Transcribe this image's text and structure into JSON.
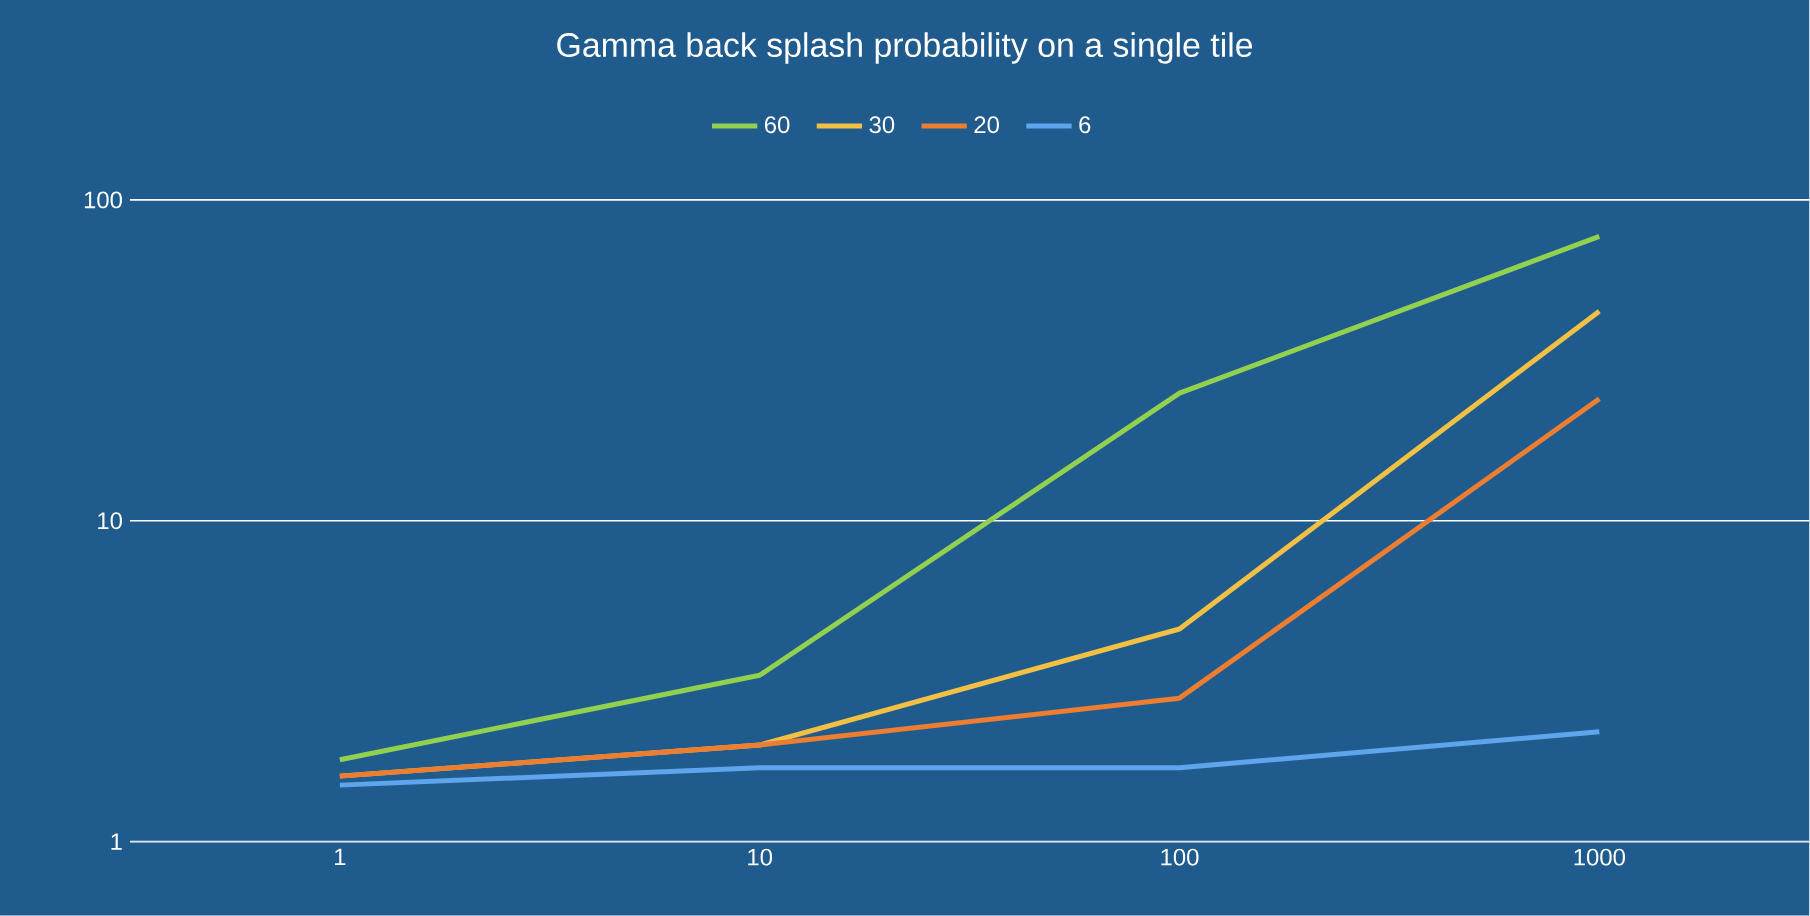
{
  "chart_data": {
    "type": "line",
    "title": "Gamma back splash probability on a single tile",
    "categories": [
      "1",
      "10",
      "100",
      "1000"
    ],
    "log": true,
    "ylim": [
      1,
      100
    ],
    "yticks": [
      1,
      10,
      100
    ],
    "grid": "y",
    "legend": "top",
    "marker": "none",
    "line_style": "solid",
    "series": [
      {
        "name": "60",
        "color": "#92d050",
        "values": [
          1.8,
          3.3,
          25,
          77
        ]
      },
      {
        "name": "30",
        "color": "#f2c144",
        "values": [
          1.6,
          2.0,
          4.6,
          45
        ]
      },
      {
        "name": "20",
        "color": "#ed7d31",
        "values": [
          1.6,
          2.0,
          2.8,
          24
        ]
      },
      {
        "name": "6",
        "color": "#5ea5ee",
        "values": [
          1.5,
          1.7,
          1.7,
          2.2
        ]
      }
    ]
  }
}
